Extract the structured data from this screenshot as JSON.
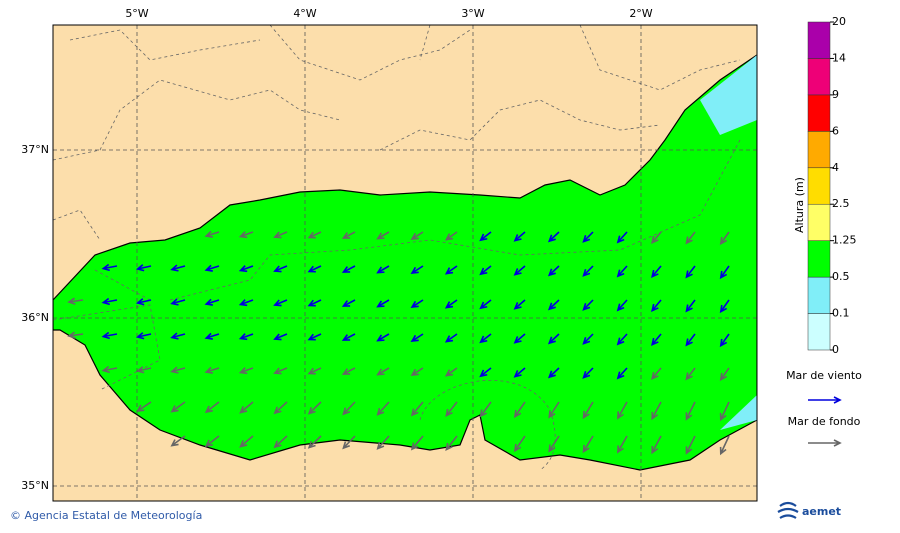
{
  "map": {
    "lon_labels": [
      "5°W",
      "4°W",
      "3°W",
      "2°W"
    ],
    "lat_labels": [
      "37°N",
      "36°N",
      "35°N"
    ]
  },
  "colorbar": {
    "title": "Altura (m)",
    "levels": [
      0,
      0.1,
      0.5,
      1.25,
      2.5,
      4,
      6,
      9,
      14,
      20
    ],
    "colors": [
      "#ccffff",
      "#80eef8",
      "#00ff00",
      "#ffff66",
      "#ffdd00",
      "#ffaa00",
      "#ff0000",
      "#ee0077",
      "#aa00aa"
    ]
  },
  "legend": {
    "wind": "Mar de viento",
    "wind_color": "#0000dd",
    "swell": "Mar de fondo",
    "swell_color": "#666666"
  },
  "footer": {
    "credit": "© Agencia Estatal de Meteorología",
    "logo": "aemet"
  }
}
